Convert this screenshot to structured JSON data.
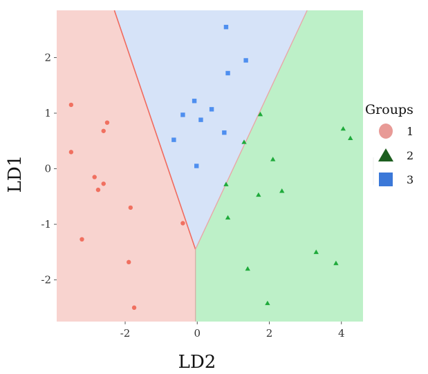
{
  "chart_data": {
    "type": "scatter",
    "title": "",
    "xlabel": "LD2",
    "ylabel": "LD1",
    "xlim": [
      -3.9,
      4.6
    ],
    "ylim": [
      -2.75,
      2.85
    ],
    "x_ticks": [
      -2,
      0,
      2,
      4
    ],
    "y_ticks": [
      -2,
      -1,
      0,
      1,
      2
    ],
    "grid": false,
    "legend": {
      "title": "Groups",
      "position": "right"
    },
    "regions": [
      {
        "group": "1",
        "color": "#f8d3cf",
        "boundary_color": "#f06a5e"
      },
      {
        "group": "3",
        "color": "#d6e3f8",
        "boundary_color": "#e9a7a7"
      },
      {
        "group": "2",
        "color": "#bdf0c8",
        "boundary_color": "#d8b0a8"
      }
    ],
    "decision_boundaries": [
      {
        "between": [
          "1",
          "3"
        ],
        "points": [
          [
            -2.3,
            2.85
          ],
          [
            -0.05,
            -1.45
          ]
        ]
      },
      {
        "between": [
          "3",
          "2"
        ],
        "points": [
          [
            -0.05,
            -1.45
          ],
          [
            3.05,
            2.85
          ]
        ]
      },
      {
        "between": [
          "1",
          "2"
        ],
        "points": [
          [
            -0.05,
            -1.45
          ],
          [
            -0.05,
            -2.75
          ]
        ]
      }
    ],
    "series": [
      {
        "name": "1",
        "marker": "circle",
        "color": "#f07060",
        "legend_color": "#e89a96",
        "points": [
          [
            -3.5,
            1.15
          ],
          [
            -2.5,
            0.83
          ],
          [
            -2.6,
            0.68
          ],
          [
            -3.5,
            0.3
          ],
          [
            -2.85,
            -0.15
          ],
          [
            -2.6,
            -0.27
          ],
          [
            -2.75,
            -0.38
          ],
          [
            -1.85,
            -0.7
          ],
          [
            -0.4,
            -0.98
          ],
          [
            -3.2,
            -1.27
          ],
          [
            -1.9,
            -1.68
          ],
          [
            -1.75,
            -2.5
          ]
        ]
      },
      {
        "name": "2",
        "marker": "triangle",
        "color": "#1faa3b",
        "legend_color": "#1d5e1f",
        "points": [
          [
            1.75,
            0.98
          ],
          [
            4.05,
            0.72
          ],
          [
            4.25,
            0.55
          ],
          [
            1.3,
            0.48
          ],
          [
            2.1,
            0.17
          ],
          [
            0.8,
            -0.28
          ],
          [
            2.35,
            -0.4
          ],
          [
            1.7,
            -0.47
          ],
          [
            0.85,
            -0.88
          ],
          [
            3.3,
            -1.5
          ],
          [
            3.85,
            -1.7
          ],
          [
            1.4,
            -1.8
          ],
          [
            1.95,
            -2.42
          ]
        ]
      },
      {
        "name": "3",
        "marker": "square",
        "color": "#4f8fef",
        "legend_color": "#3b78d8",
        "points": [
          [
            0.8,
            2.55
          ],
          [
            1.35,
            1.95
          ],
          [
            0.85,
            1.72
          ],
          [
            -0.08,
            1.22
          ],
          [
            0.4,
            1.07
          ],
          [
            -0.4,
            0.97
          ],
          [
            0.1,
            0.88
          ],
          [
            0.75,
            0.65
          ],
          [
            -0.65,
            0.52
          ],
          [
            -0.02,
            0.05
          ]
        ]
      }
    ]
  }
}
